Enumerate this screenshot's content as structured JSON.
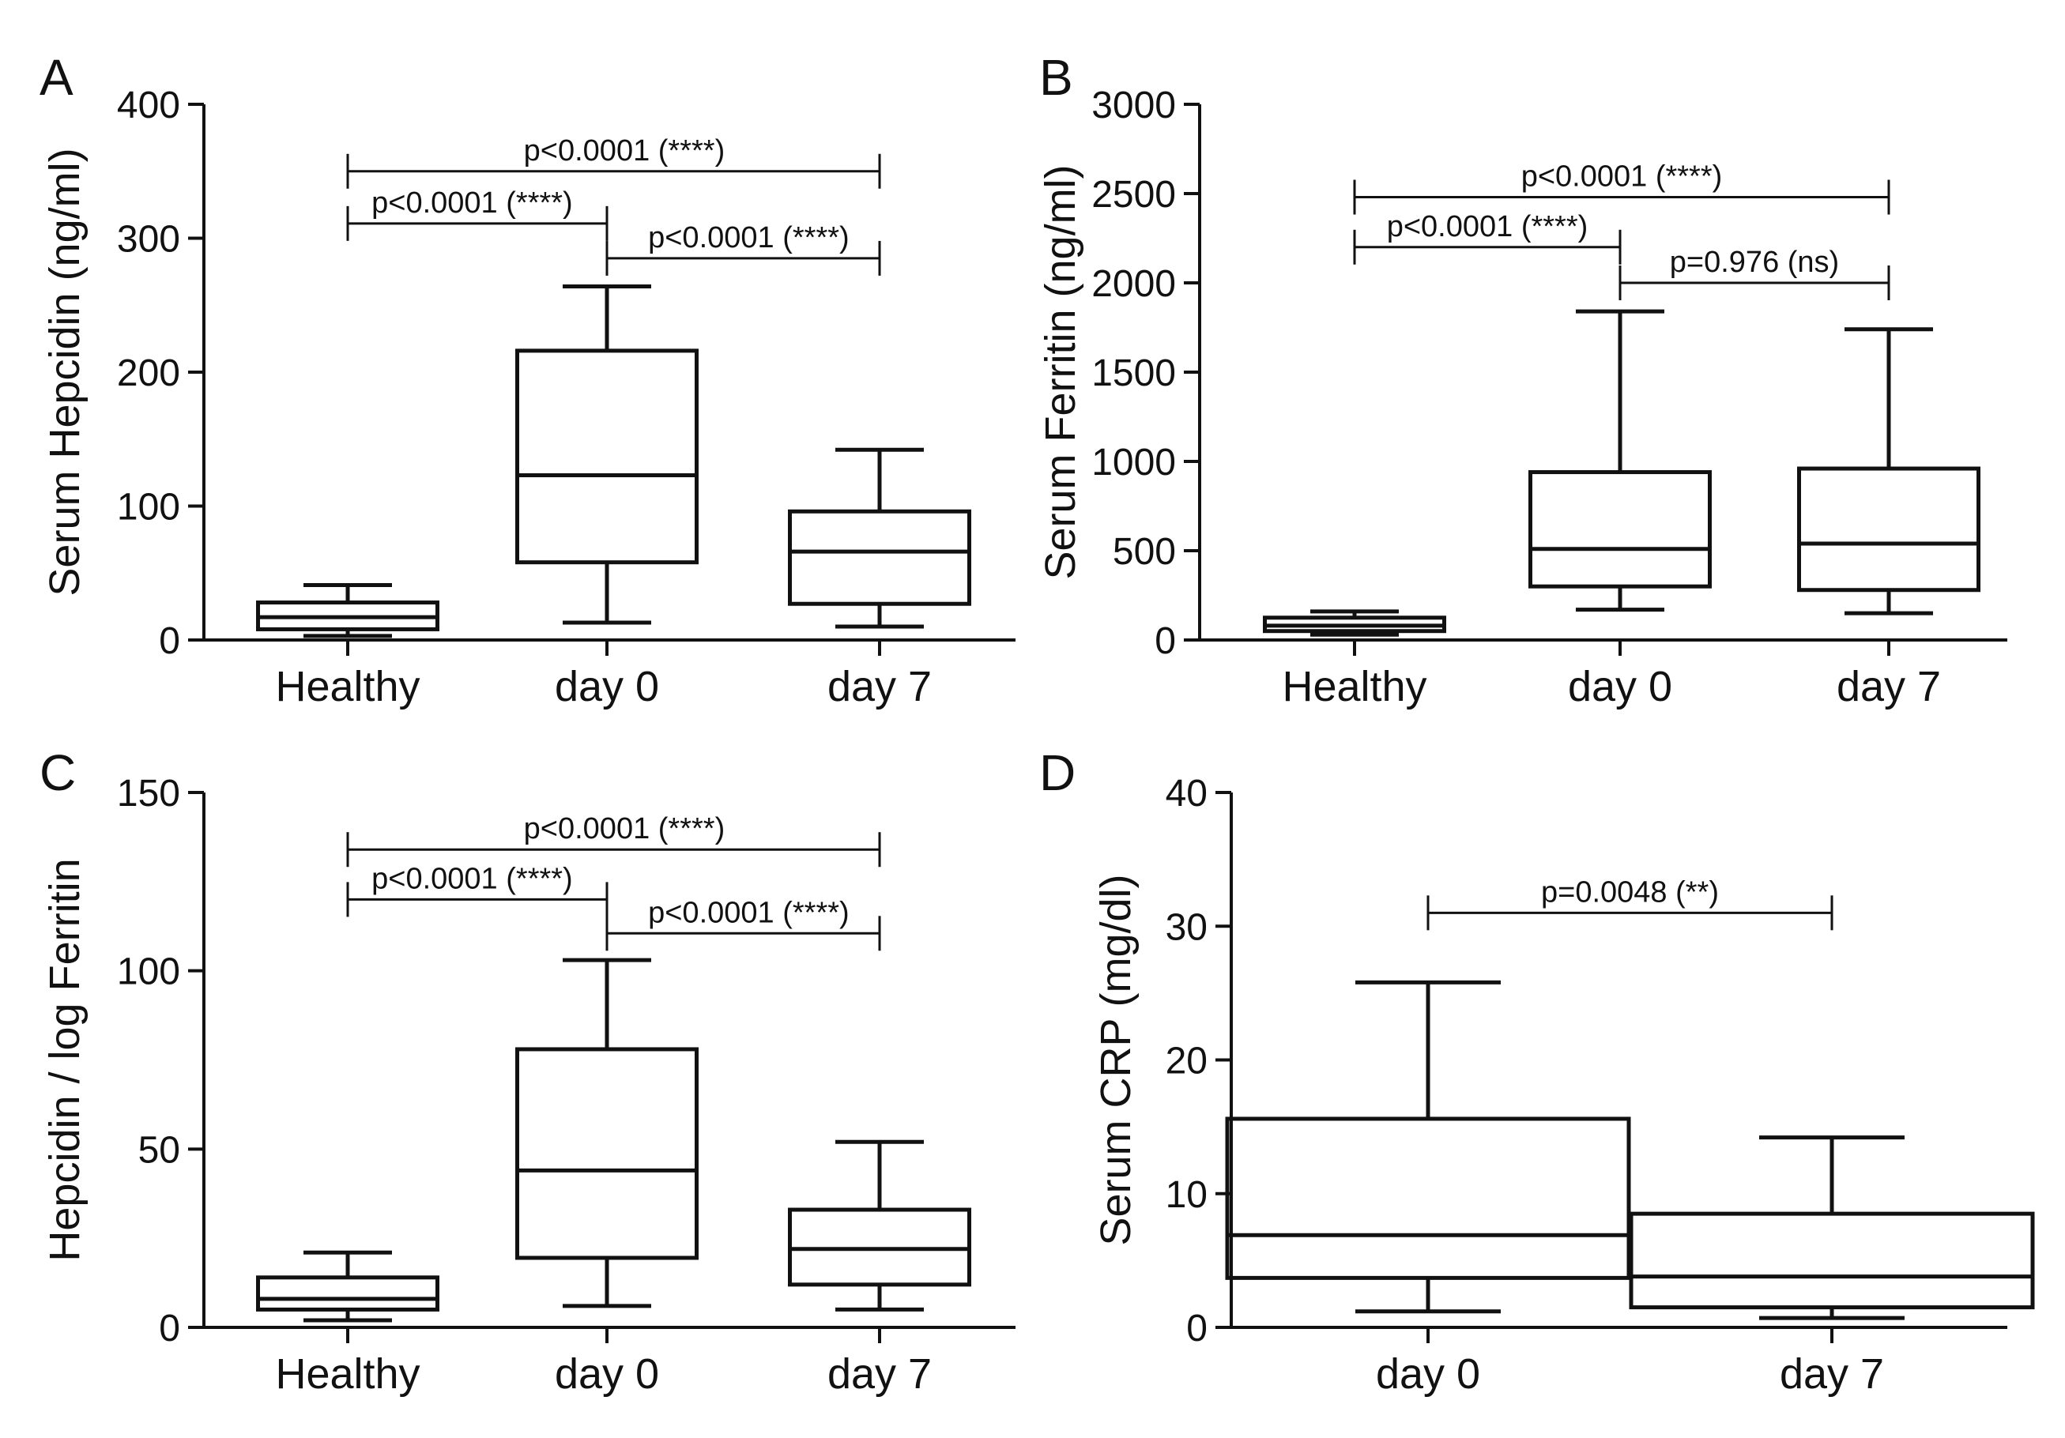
{
  "chart_data": [
    {
      "panel": "A",
      "type": "box",
      "ylabel": "Serum Hepcidin (ng/ml)",
      "ylim": [
        0,
        400
      ],
      "yticks": [
        0,
        100,
        200,
        300,
        400
      ],
      "categories": [
        "Healthy",
        "day 0",
        "day 7"
      ],
      "boxes": [
        {
          "category": "Healthy",
          "min": 3,
          "q1": 8,
          "median": 17,
          "q3": 28,
          "max": 41
        },
        {
          "category": "day 0",
          "min": 13,
          "q1": 58,
          "median": 123,
          "q3": 216,
          "max": 264
        },
        {
          "category": "day 7",
          "min": 10,
          "q1": 27,
          "median": 66,
          "q3": 96,
          "max": 142
        }
      ],
      "comparisons": [
        {
          "from": 0,
          "to": 2,
          "y": 350,
          "label": "p<0.0001 (****)"
        },
        {
          "from": 0,
          "to": 1,
          "y": 311,
          "label": "p<0.0001 (****)"
        },
        {
          "from": 1,
          "to": 2,
          "y": 285,
          "label": "p<0.0001 (****)"
        }
      ]
    },
    {
      "panel": "B",
      "type": "box",
      "ylabel": "Serum Ferritin (ng/ml)",
      "ylim": [
        0,
        3000
      ],
      "yticks": [
        0,
        500,
        1000,
        1500,
        2000,
        2500,
        3000
      ],
      "categories": [
        "Healthy",
        "day 0",
        "day 7"
      ],
      "boxes": [
        {
          "category": "Healthy",
          "min": 30,
          "q1": 50,
          "median": 80,
          "q3": 125,
          "max": 160
        },
        {
          "category": "day 0",
          "min": 170,
          "q1": 300,
          "median": 510,
          "q3": 940,
          "max": 1840
        },
        {
          "category": "day 7",
          "min": 150,
          "q1": 280,
          "median": 540,
          "q3": 960,
          "max": 1740
        }
      ],
      "comparisons": [
        {
          "from": 0,
          "to": 2,
          "y": 2480,
          "label": "p<0.0001 (****)"
        },
        {
          "from": 0,
          "to": 1,
          "y": 2200,
          "label": "p<0.0001 (****)"
        },
        {
          "from": 1,
          "to": 2,
          "y": 2000,
          "label": "p=0.976 (ns)"
        }
      ]
    },
    {
      "panel": "C",
      "type": "box",
      "ylabel": "Hepcidin / log Ferritin",
      "ylim": [
        0,
        150
      ],
      "yticks": [
        0,
        50,
        100,
        150
      ],
      "categories": [
        "Healthy",
        "day 0",
        "day 7"
      ],
      "boxes": [
        {
          "category": "Healthy",
          "min": 2,
          "q1": 5,
          "median": 8,
          "q3": 14,
          "max": 21
        },
        {
          "category": "day 0",
          "min": 6,
          "q1": 19.5,
          "median": 44,
          "q3": 78,
          "max": 103
        },
        {
          "category": "day 7",
          "min": 5,
          "q1": 12,
          "median": 22,
          "q3": 33,
          "max": 52
        }
      ],
      "comparisons": [
        {
          "from": 0,
          "to": 2,
          "y": 134,
          "label": "p<0.0001 (****)"
        },
        {
          "from": 0,
          "to": 1,
          "y": 120,
          "label": "p<0.0001 (****)"
        },
        {
          "from": 1,
          "to": 2,
          "y": 110.5,
          "label": "p<0.0001 (****)"
        }
      ]
    },
    {
      "panel": "D",
      "type": "box",
      "ylabel": "Serum CRP (mg/dl)",
      "ylim": [
        0,
        40
      ],
      "yticks": [
        0,
        10,
        20,
        30,
        40
      ],
      "categories": [
        "day 0",
        "day 7"
      ],
      "boxes": [
        {
          "category": "day 0",
          "min": 1.2,
          "q1": 3.7,
          "median": 6.9,
          "q3": 15.6,
          "max": 25.8
        },
        {
          "category": "day 7",
          "min": 0.7,
          "q1": 1.5,
          "median": 3.8,
          "q3": 8.5,
          "max": 14.2
        }
      ],
      "comparisons": [
        {
          "from": 0,
          "to": 1,
          "y": 31,
          "label": "p=0.0048 (**)"
        }
      ]
    }
  ]
}
